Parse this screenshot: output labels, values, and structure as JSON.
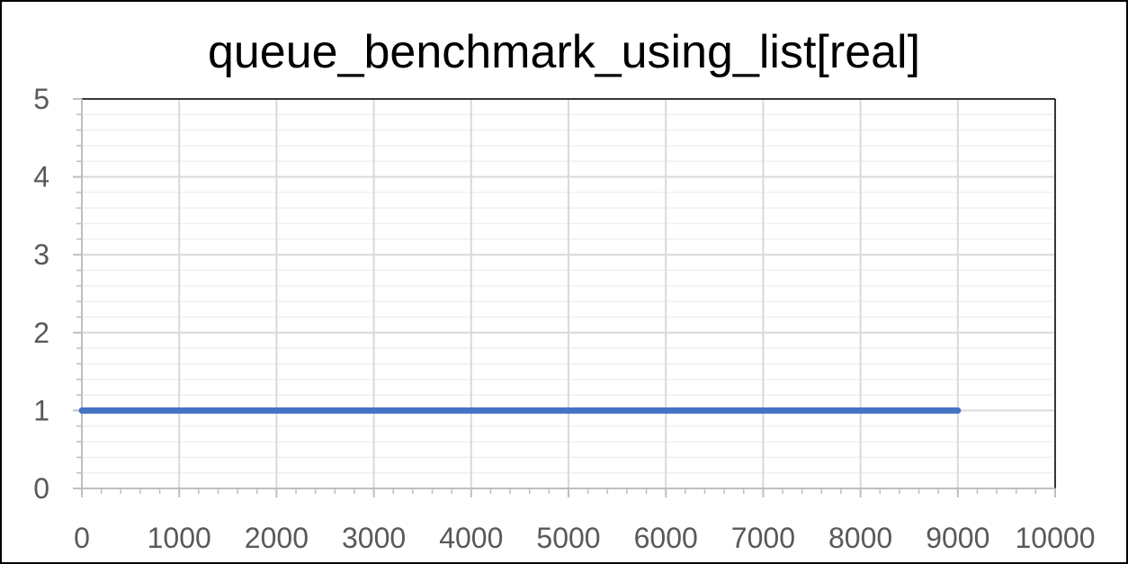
{
  "chart_data": {
    "type": "line",
    "title": "queue_benchmark_using_list[real]",
    "xlabel": "",
    "ylabel": "",
    "xlim": [
      0,
      10000
    ],
    "ylim": [
      0,
      5
    ],
    "x_ticks": [
      "0",
      "1000",
      "2000",
      "3000",
      "4000",
      "5000",
      "6000",
      "7000",
      "8000",
      "9000",
      "10000"
    ],
    "y_ticks": [
      "0",
      "1",
      "2",
      "3",
      "4",
      "5"
    ],
    "grid": true,
    "legend": "none",
    "series": [
      {
        "color": "#4472C4",
        "points": [
          [
            0,
            1
          ],
          [
            9000,
            1
          ]
        ]
      }
    ]
  }
}
